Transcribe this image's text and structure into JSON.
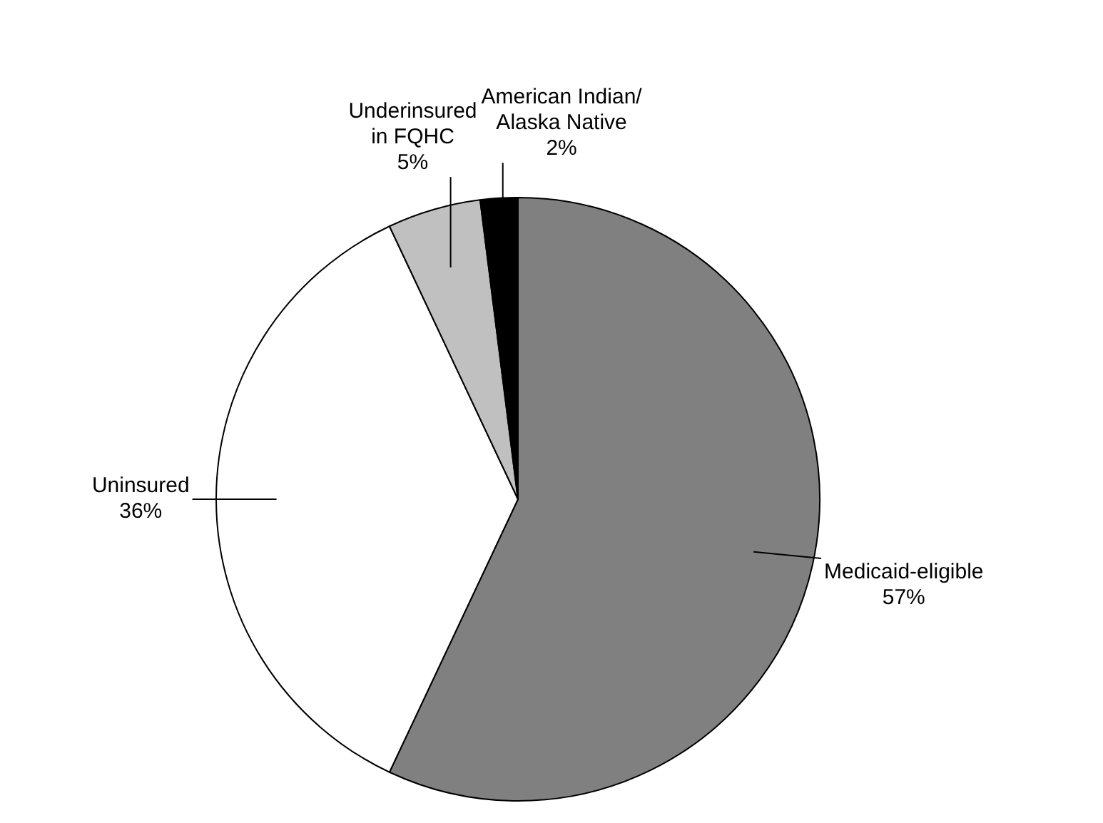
{
  "chart_data": {
    "type": "pie",
    "categories": [
      "Medicaid-eligible",
      "Uninsured",
      "Underinsured\nin FQHC",
      "American Indian/\nAlaska Native"
    ],
    "values": [
      57,
      36,
      5,
      2
    ],
    "value_labels": [
      "57%",
      "36%",
      "5%",
      "2%"
    ],
    "colors": [
      "#808080",
      "#ffffff",
      "#c0c0c0",
      "#000000"
    ],
    "legend": false
  }
}
